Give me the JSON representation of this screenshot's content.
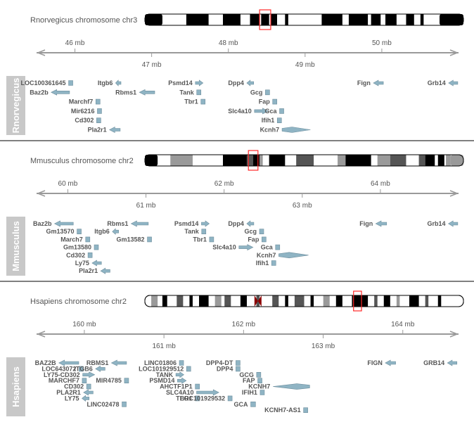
{
  "colors": {
    "gene_fill": "#8fb4c4",
    "gene_stroke": "#6f8f9e",
    "axis": "#9a9a9a",
    "sidebar": "#c8c8c8",
    "highlight": "#ff2a2a",
    "text": "#555555"
  },
  "tracks": [
    {
      "organism": "Rnorvegicus",
      "ideogram": {
        "title": "Rnorvegicus chromosome chr3",
        "highlight": [
          0.36,
          0.395
        ],
        "bands": [
          [
            0.0,
            0.055,
            "#000000"
          ],
          [
            0.13,
            0.2,
            "#000000"
          ],
          [
            0.245,
            0.3,
            "#000000"
          ],
          [
            0.33,
            0.36,
            "#000000"
          ],
          [
            0.365,
            0.39,
            "#000000"
          ],
          [
            0.395,
            0.415,
            "#000000"
          ],
          [
            0.44,
            0.45,
            "#000000"
          ],
          [
            0.555,
            0.62,
            "#000000"
          ],
          [
            0.64,
            0.7,
            "#000000"
          ],
          [
            0.71,
            0.74,
            "#000000"
          ],
          [
            0.755,
            0.79,
            "#000000"
          ],
          [
            0.82,
            0.845,
            "#000000"
          ],
          [
            0.865,
            0.875,
            "#000000"
          ],
          [
            0.925,
            1.0,
            "#000000"
          ]
        ],
        "centromere": null
      },
      "axis": {
        "range": [
          45.5,
          51.0
        ],
        "ticks_top": [
          {
            "v": 46,
            "label": "46 mb"
          },
          {
            "v": 48,
            "label": "48 mb"
          },
          {
            "v": 50,
            "label": "50 mb"
          }
        ],
        "ticks_bottom": [
          {
            "v": 47,
            "label": "47 mb"
          },
          {
            "v": 49,
            "label": "49 mb"
          }
        ]
      },
      "genes": [
        {
          "name": "LOC100361645",
          "start": 45.93,
          "end": 45.96,
          "row": 0,
          "strand": "+",
          "label_side": "left"
        },
        {
          "name": "Baz2b",
          "start": 45.69,
          "end": 45.93,
          "row": 1,
          "strand": "-",
          "label_side": "left"
        },
        {
          "name": "Marchf7",
          "start": 46.29,
          "end": 46.31,
          "row": 2,
          "strand": "+",
          "label_side": "left"
        },
        {
          "name": "Mir6216",
          "start": 46.31,
          "end": 46.33,
          "row": 3,
          "strand": "+",
          "label_side": "left"
        },
        {
          "name": "Cd302",
          "start": 46.3,
          "end": 46.32,
          "row": 4,
          "strand": "+",
          "label_side": "left"
        },
        {
          "name": "Pla2r1",
          "start": 46.45,
          "end": 46.59,
          "row": 5,
          "strand": "-",
          "label_side": "left"
        },
        {
          "name": "Itgb6",
          "start": 46.53,
          "end": 46.6,
          "row": 0,
          "strand": "-",
          "label_side": "left"
        },
        {
          "name": "Rbms1",
          "start": 46.84,
          "end": 47.04,
          "row": 1,
          "strand": "-",
          "label_side": "left"
        },
        {
          "name": "Psmd14",
          "start": 47.57,
          "end": 47.67,
          "row": 0,
          "strand": "+",
          "label_side": "left"
        },
        {
          "name": "Tank",
          "start": 47.6,
          "end": 47.63,
          "row": 1,
          "strand": "+",
          "label_side": "left"
        },
        {
          "name": "Tbr1",
          "start": 47.66,
          "end": 47.68,
          "row": 2,
          "strand": "+",
          "label_side": "left"
        },
        {
          "name": "Slc4a10",
          "start": 48.34,
          "end": 48.52,
          "row": 3,
          "strand": "+",
          "label_side": "left"
        },
        {
          "name": "Dpp4",
          "start": 48.24,
          "end": 48.33,
          "row": 0,
          "strand": "-",
          "label_side": "left"
        },
        {
          "name": "Gcg",
          "start": 48.5,
          "end": 48.52,
          "row": 1,
          "strand": "-",
          "label_side": "left"
        },
        {
          "name": "Fap",
          "start": 48.59,
          "end": 48.62,
          "row": 2,
          "strand": "-",
          "label_side": "left"
        },
        {
          "name": "Gca",
          "start": 48.68,
          "end": 48.71,
          "row": 3,
          "strand": "+",
          "label_side": "left"
        },
        {
          "name": "Ifih1",
          "start": 48.65,
          "end": 48.68,
          "row": 4,
          "strand": "-",
          "label_side": "left"
        },
        {
          "name": "Kcnh7",
          "start": 48.7,
          "end": 49.07,
          "row": 5,
          "strand": "+",
          "label_side": "left"
        },
        {
          "name": "Fign",
          "start": 49.89,
          "end": 50.02,
          "row": 0,
          "strand": "-",
          "label_side": "left"
        },
        {
          "name": "Grb14",
          "start": 50.87,
          "end": 50.99,
          "row": 0,
          "strand": "-",
          "label_side": "left"
        }
      ]
    },
    {
      "organism": "Mmusculus",
      "ideogram": {
        "title": "Mmusculus chromosome chr2",
        "highlight": [
          0.325,
          0.355
        ],
        "bands": [
          [
            0.0,
            0.04,
            "#000000"
          ],
          [
            0.08,
            0.15,
            "#9a9a9a"
          ],
          [
            0.245,
            0.32,
            "#000000"
          ],
          [
            0.32,
            0.34,
            "#555555"
          ],
          [
            0.34,
            0.36,
            "#000000"
          ],
          [
            0.36,
            0.37,
            "#9a9a9a"
          ],
          [
            0.39,
            0.44,
            "#000000"
          ],
          [
            0.475,
            0.53,
            "#555555"
          ],
          [
            0.605,
            0.63,
            "#9a9a9a"
          ],
          [
            0.63,
            0.71,
            "#000000"
          ],
          [
            0.73,
            0.77,
            "#9a9a9a"
          ],
          [
            0.77,
            0.82,
            "#555555"
          ],
          [
            0.86,
            0.88,
            "#555555"
          ],
          [
            0.88,
            0.91,
            "#000000"
          ],
          [
            0.92,
            0.94,
            "#000000"
          ],
          [
            0.945,
            0.96,
            "#9a9a9a"
          ],
          [
            0.96,
            1.0,
            "#9a9a9a"
          ]
        ],
        "centromere": null
      },
      "axis": {
        "range": [
          59.6,
          65.0
        ],
        "ticks_top": [
          {
            "v": 60,
            "label": "60 mb"
          },
          {
            "v": 62,
            "label": "62 mb"
          },
          {
            "v": 64,
            "label": "64 mb"
          }
        ],
        "ticks_bottom": [
          {
            "v": 61,
            "label": "61 mb"
          },
          {
            "v": 63,
            "label": "63 mb"
          }
        ]
      },
      "genes": [
        {
          "name": "Baz2b",
          "start": 59.83,
          "end": 60.07,
          "row": 0,
          "strand": "-",
          "label_side": "left"
        },
        {
          "name": "Gm13570",
          "start": 60.13,
          "end": 60.16,
          "row": 1,
          "strand": "+",
          "label_side": "left"
        },
        {
          "name": "March7",
          "start": 60.24,
          "end": 60.27,
          "row": 2,
          "strand": "+",
          "label_side": "left"
        },
        {
          "name": "Gm13580",
          "start": 60.35,
          "end": 60.38,
          "row": 3,
          "strand": "+",
          "label_side": "left"
        },
        {
          "name": "Cd302",
          "start": 60.27,
          "end": 60.3,
          "row": 4,
          "strand": "+",
          "label_side": "left"
        },
        {
          "name": "Ly75",
          "start": 60.31,
          "end": 60.43,
          "row": 5,
          "strand": "-",
          "label_side": "left"
        },
        {
          "name": "Pla2r1",
          "start": 60.42,
          "end": 60.54,
          "row": 6,
          "strand": "-",
          "label_side": "left"
        },
        {
          "name": "Rbms1",
          "start": 60.81,
          "end": 61.03,
          "row": 0,
          "strand": "-",
          "label_side": "left"
        },
        {
          "name": "Itgb6",
          "start": 60.57,
          "end": 60.65,
          "row": 1,
          "strand": "-",
          "label_side": "left"
        },
        {
          "name": "Gm13582",
          "start": 61.03,
          "end": 61.06,
          "row": 2,
          "strand": "+",
          "label_side": "left"
        },
        {
          "name": "Psmd14",
          "start": 61.71,
          "end": 61.81,
          "row": 0,
          "strand": "+",
          "label_side": "left"
        },
        {
          "name": "Tank",
          "start": 61.73,
          "end": 61.75,
          "row": 1,
          "strand": "+",
          "label_side": "left"
        },
        {
          "name": "Tbr1",
          "start": 61.83,
          "end": 61.85,
          "row": 2,
          "strand": "+",
          "label_side": "left"
        },
        {
          "name": "Slc4a10",
          "start": 62.19,
          "end": 62.37,
          "row": 3,
          "strand": "+",
          "label_side": "left"
        },
        {
          "name": "Dpp4",
          "start": 62.29,
          "end": 62.38,
          "row": 0,
          "strand": "-",
          "label_side": "left"
        },
        {
          "name": "Gcg",
          "start": 62.47,
          "end": 62.49,
          "row": 1,
          "strand": "-",
          "label_side": "left"
        },
        {
          "name": "Fap",
          "start": 62.49,
          "end": 62.53,
          "row": 2,
          "strand": "-",
          "label_side": "left"
        },
        {
          "name": "Gca",
          "start": 62.67,
          "end": 62.7,
          "row": 3,
          "strand": "+",
          "label_side": "left"
        },
        {
          "name": "Kcnh7",
          "start": 62.7,
          "end": 63.08,
          "row": 4,
          "strand": "+",
          "label_side": "left"
        },
        {
          "name": "Ifih1",
          "start": 62.62,
          "end": 62.65,
          "row": 5,
          "strand": "-",
          "label_side": "left"
        },
        {
          "name": "Fign",
          "start": 63.94,
          "end": 64.08,
          "row": 0,
          "strand": "-",
          "label_side": "left"
        },
        {
          "name": "Grb14",
          "start": 64.87,
          "end": 64.99,
          "row": 0,
          "strand": "-",
          "label_side": "left"
        }
      ]
    },
    {
      "organism": "Hsapiens",
      "ideogram": {
        "title": "Hsapiens chromosome chr2",
        "highlight": [
          0.655,
          0.68
        ],
        "bands": [
          [
            0.02,
            0.04,
            "#9a9a9a"
          ],
          [
            0.055,
            0.07,
            "#000000"
          ],
          [
            0.1,
            0.12,
            "#555555"
          ],
          [
            0.14,
            0.15,
            "#000000"
          ],
          [
            0.17,
            0.2,
            "#000000"
          ],
          [
            0.22,
            0.24,
            "#9a9a9a"
          ],
          [
            0.25,
            0.27,
            "#555555"
          ],
          [
            0.3,
            0.32,
            "#000000"
          ],
          [
            0.35,
            0.36,
            "#555555"
          ],
          [
            0.4,
            0.42,
            "#555555"
          ],
          [
            0.44,
            0.45,
            "#000000"
          ],
          [
            0.47,
            0.5,
            "#555555"
          ],
          [
            0.52,
            0.53,
            "#000000"
          ],
          [
            0.56,
            0.58,
            "#9a9a9a"
          ],
          [
            0.6,
            0.62,
            "#000000"
          ],
          [
            0.65,
            0.7,
            "#000000"
          ],
          [
            0.72,
            0.73,
            "#555555"
          ],
          [
            0.75,
            0.77,
            "#000000"
          ],
          [
            0.79,
            0.8,
            "#9a9a9a"
          ],
          [
            0.83,
            0.86,
            "#000000"
          ],
          [
            0.88,
            0.89,
            "#555555"
          ],
          [
            0.92,
            0.93,
            "#000000"
          ]
        ],
        "centromere": 0.355
      },
      "axis": {
        "range": [
          159.4,
          164.7
        ],
        "ticks_top": [
          {
            "v": 160,
            "label": "160 mb"
          },
          {
            "v": 162,
            "label": "162 mb"
          },
          {
            "v": 164,
            "label": "164 mb"
          }
        ],
        "ticks_bottom": [
          {
            "v": 161,
            "label": "161 mb"
          },
          {
            "v": 163,
            "label": "163 mb"
          }
        ]
      },
      "genes": [
        {
          "name": "BAZ2B",
          "start": 159.68,
          "end": 159.93,
          "row": 0,
          "strand": "-",
          "label_side": "left"
        },
        {
          "name": "LOC643072",
          "start": 159.95,
          "end": 159.97,
          "row": 1,
          "strand": "+",
          "label_side": "left"
        },
        {
          "name": "LY75-CD302",
          "start": 159.98,
          "end": 160.13,
          "row": 2,
          "strand": "+",
          "label_side": "left"
        },
        {
          "name": "MARCHF7",
          "start": 159.99,
          "end": 160.01,
          "row": 3,
          "strand": "+",
          "label_side": "left"
        },
        {
          "name": "CD302",
          "start": 160.04,
          "end": 160.07,
          "row": 4,
          "strand": "+",
          "label_side": "left"
        },
        {
          "name": "PLA2R1",
          "start": 159.99,
          "end": 160.11,
          "row": 5,
          "strand": "-",
          "label_side": "left"
        },
        {
          "name": "LY75",
          "start": 159.97,
          "end": 160.06,
          "row": 6,
          "strand": "-",
          "label_side": "left"
        },
        {
          "name": "RBMS1",
          "start": 160.34,
          "end": 160.53,
          "row": 0,
          "strand": "-",
          "label_side": "left"
        },
        {
          "name": "ITGB6",
          "start": 160.14,
          "end": 160.26,
          "row": 1,
          "strand": "-",
          "label_side": "left"
        },
        {
          "name": "MIR4785",
          "start": 160.52,
          "end": 160.54,
          "row": 3,
          "strand": "+",
          "label_side": "left"
        },
        {
          "name": "LINC02478",
          "start": 160.49,
          "end": 160.51,
          "row": 7,
          "strand": "+",
          "label_side": "left"
        },
        {
          "name": "LINC01806",
          "start": 161.21,
          "end": 161.23,
          "row": 0,
          "strand": "+",
          "label_side": "left"
        },
        {
          "name": "LOC101929512",
          "start": 161.3,
          "end": 161.32,
          "row": 1,
          "strand": "+",
          "label_side": "left"
        },
        {
          "name": "TANK",
          "start": 161.15,
          "end": 161.25,
          "row": 2,
          "strand": "+",
          "label_side": "left"
        },
        {
          "name": "PSMD14",
          "start": 161.17,
          "end": 161.28,
          "row": 3,
          "strand": "+",
          "label_side": "left"
        },
        {
          "name": "AHCTF1P1",
          "start": 161.4,
          "end": 161.44,
          "row": 4,
          "strand": "+",
          "label_side": "left"
        },
        {
          "name": "SLC4A10",
          "start": 161.41,
          "end": 161.69,
          "row": 5,
          "strand": "+",
          "label_side": "left"
        },
        {
          "name": "TBR1",
          "start": 161.41,
          "end": 161.43,
          "row": 6,
          "strand": "+",
          "label_side": "left"
        },
        {
          "name": "DPP4-DT",
          "start": 161.92,
          "end": 161.94,
          "row": 0,
          "strand": "+",
          "label_side": "left"
        },
        {
          "name": "DPP4",
          "start": 161.92,
          "end": 161.94,
          "row": 1,
          "strand": "-",
          "label_side": "left"
        },
        {
          "name": "GCG",
          "start": 162.18,
          "end": 162.2,
          "row": 2,
          "strand": "-",
          "label_side": "left"
        },
        {
          "name": "FAP",
          "start": 162.18,
          "end": 162.23,
          "row": 3,
          "strand": "-",
          "label_side": "left"
        },
        {
          "name": "KCNH7",
          "start": 162.37,
          "end": 162.83,
          "row": 4,
          "strand": "-",
          "label_side": "left"
        },
        {
          "name": "IFIH1",
          "start": 162.21,
          "end": 162.26,
          "row": 5,
          "strand": "-",
          "label_side": "left"
        },
        {
          "name": "LOC101929532",
          "start": 161.82,
          "end": 161.84,
          "row": 6,
          "strand": "+",
          "label_side": "left"
        },
        {
          "name": "GCA",
          "start": 162.09,
          "end": 162.15,
          "row": 7,
          "strand": "+",
          "label_side": "left"
        },
        {
          "name": "KCNH7-AS1",
          "start": 162.77,
          "end": 162.79,
          "row": 8,
          "strand": "+",
          "label_side": "left"
        },
        {
          "name": "FIGN",
          "start": 163.78,
          "end": 163.91,
          "row": 0,
          "strand": "-",
          "label_side": "left"
        },
        {
          "name": "GRB14",
          "start": 164.56,
          "end": 164.68,
          "row": 0,
          "strand": "-",
          "label_side": "left"
        }
      ]
    }
  ]
}
